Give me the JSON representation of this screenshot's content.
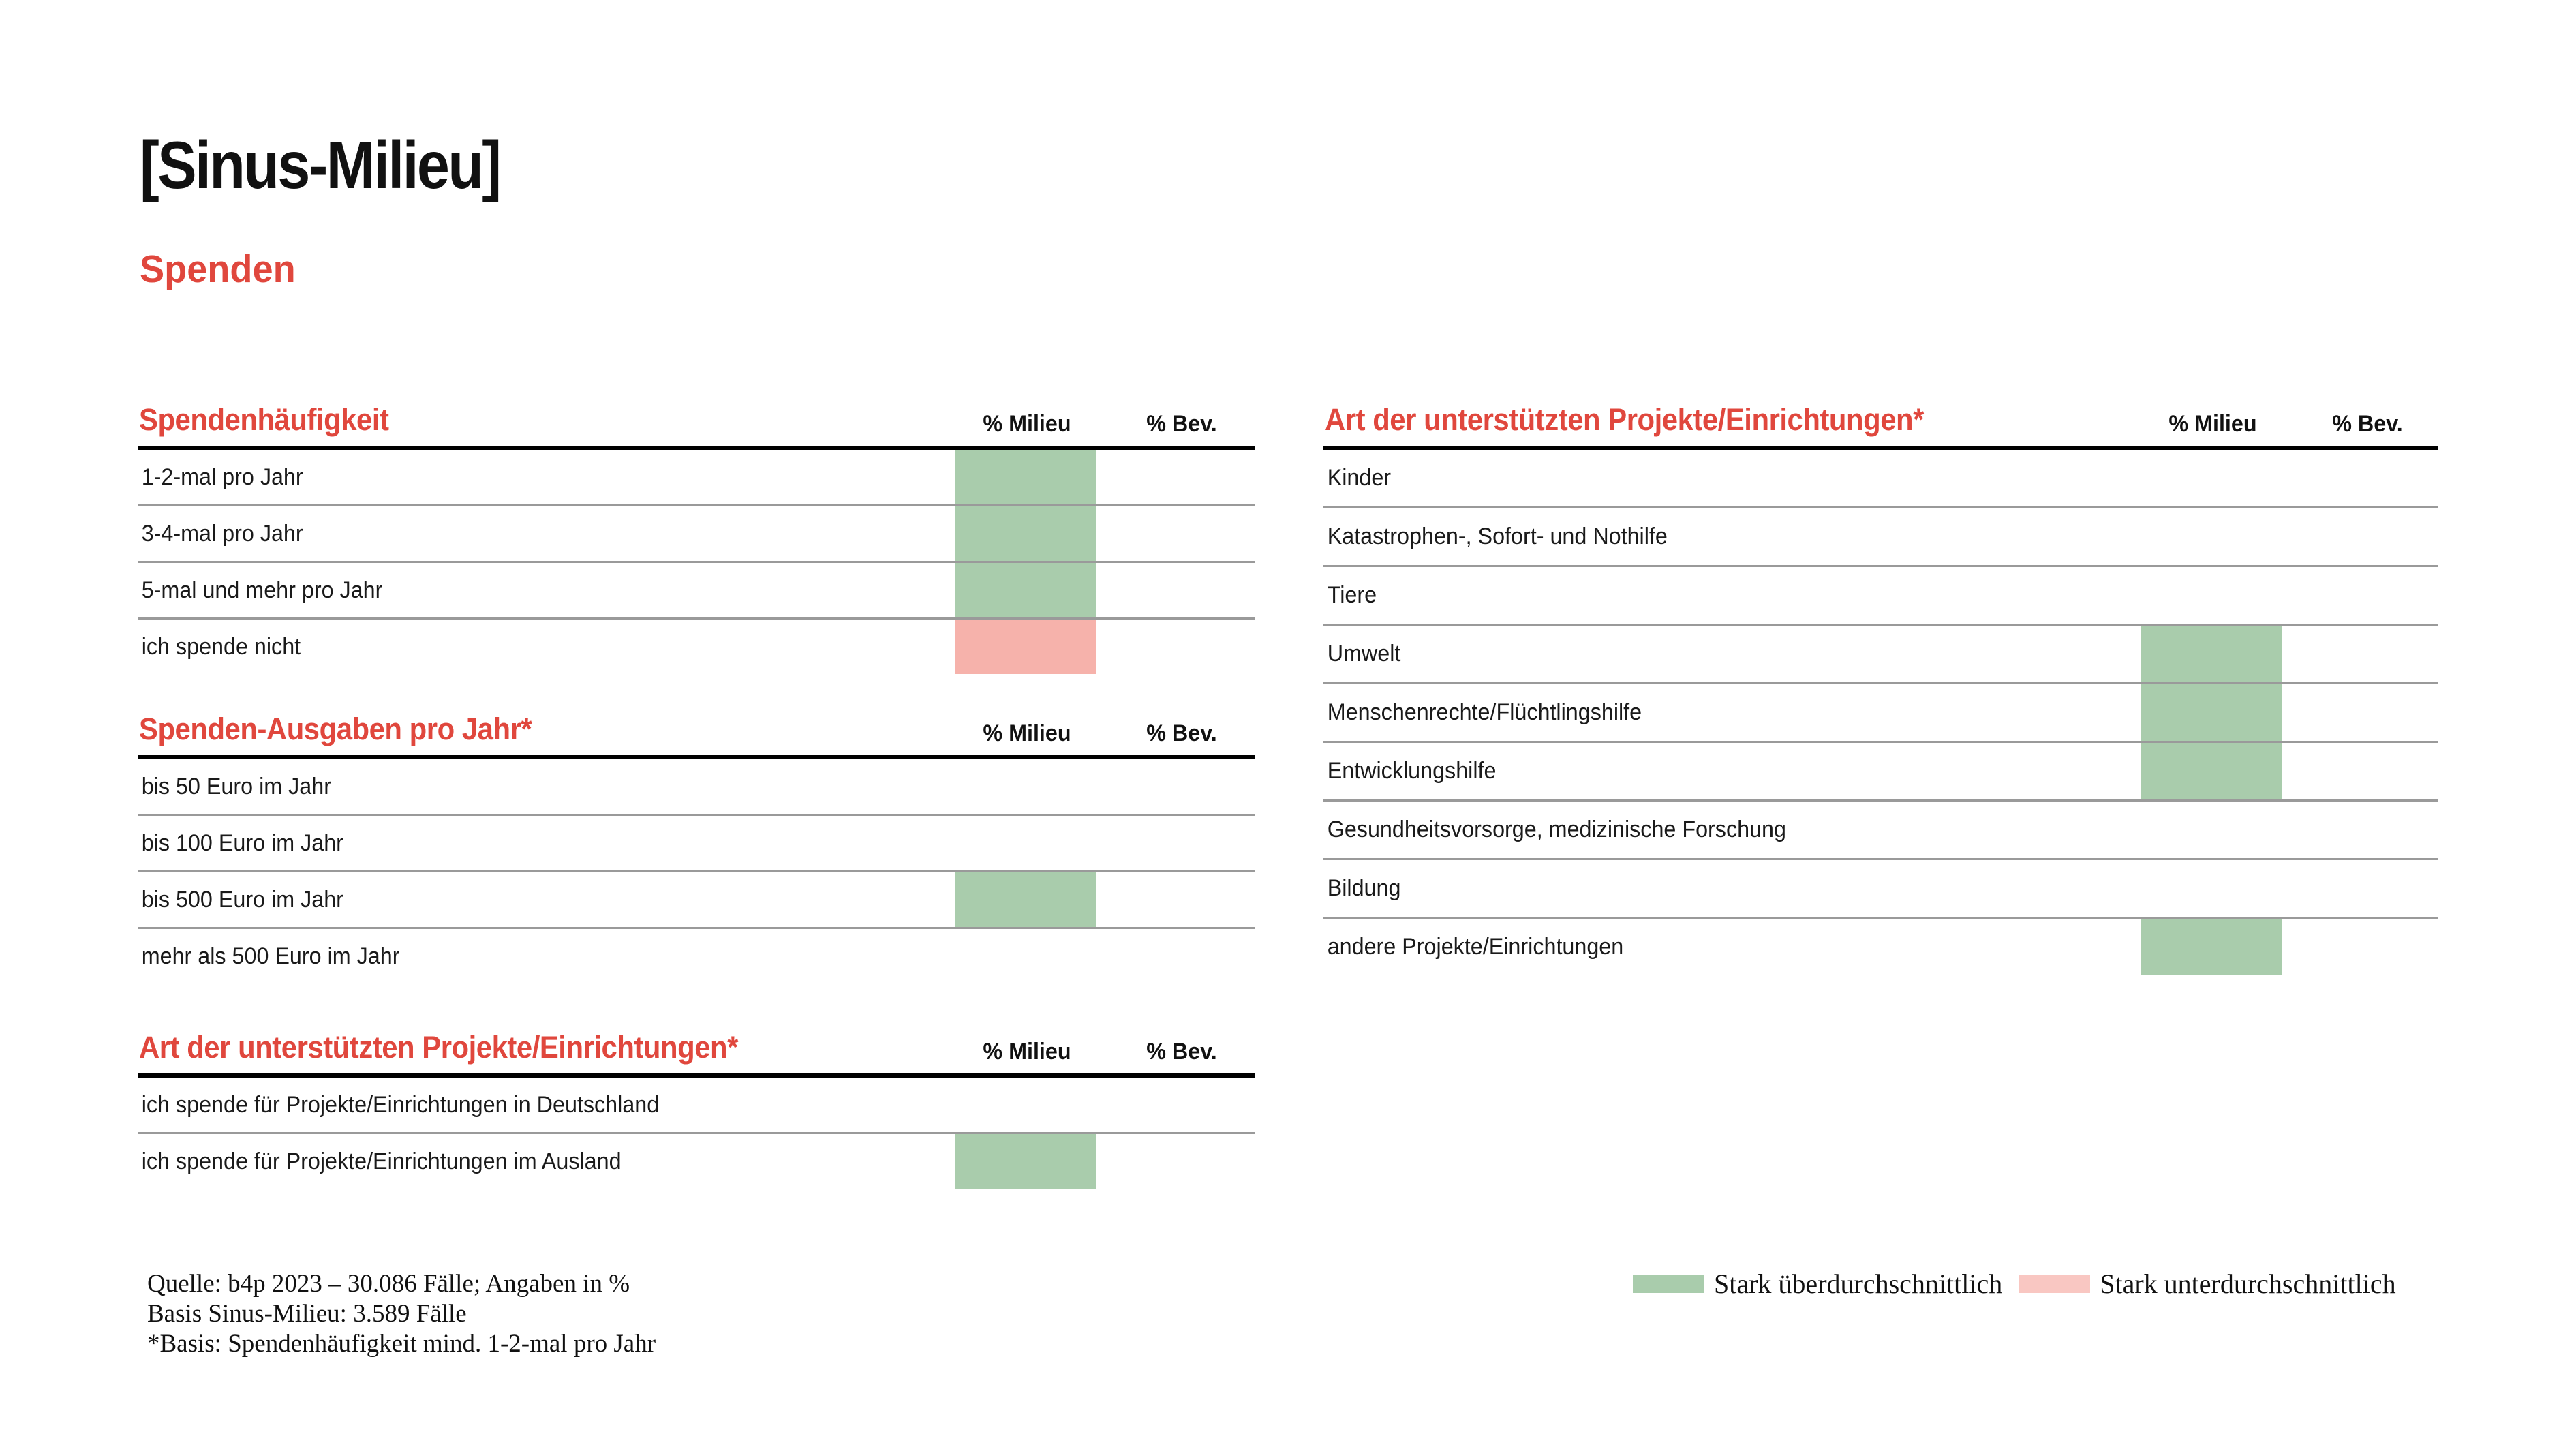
{
  "header": {
    "title": "[Sinus-Milieu]",
    "subtitle": "Spenden"
  },
  "columns": {
    "milieu": "% Milieu",
    "bev": "% Bev."
  },
  "tables": [
    {
      "heading": "Spendenhäufigkeit",
      "rows": [
        {
          "label": "1-2-mal pro Jahr",
          "highlight": "green"
        },
        {
          "label": "3-4-mal pro Jahr",
          "highlight": "green"
        },
        {
          "label": "5-mal und mehr pro Jahr",
          "highlight": "green"
        },
        {
          "label": "ich spende nicht",
          "highlight": "red"
        }
      ]
    },
    {
      "heading": "Spenden-Ausgaben pro Jahr*",
      "rows": [
        {
          "label": "bis 50 Euro im Jahr",
          "highlight": null
        },
        {
          "label": "bis 100 Euro im Jahr",
          "highlight": null
        },
        {
          "label": "bis 500 Euro im Jahr",
          "highlight": "green"
        },
        {
          "label": "mehr als 500 Euro im Jahr",
          "highlight": null
        }
      ]
    },
    {
      "heading": "Art der unterstützten Projekte/Einrichtungen*",
      "rows": [
        {
          "label": "ich spende für Projekte/Einrichtungen in Deutschland",
          "highlight": null
        },
        {
          "label": "ich spende für Projekte/Einrichtungen im Ausland",
          "highlight": "green"
        }
      ]
    },
    {
      "heading": "Art der unterstützten Projekte/Einrichtungen*",
      "rows": [
        {
          "label": "Kinder",
          "highlight": null
        },
        {
          "label": "Katastrophen-, Sofort- und Nothilfe",
          "highlight": null
        },
        {
          "label": "Tiere",
          "highlight": null
        },
        {
          "label": "Umwelt",
          "highlight": "green"
        },
        {
          "label": "Menschenrechte/Flüchtlingshilfe",
          "highlight": "green"
        },
        {
          "label": "Entwicklungshilfe",
          "highlight": "green"
        },
        {
          "label": "Gesundheitsvorsorge, medizinische Forschung",
          "highlight": null
        },
        {
          "label": "Bildung",
          "highlight": null
        },
        {
          "label": "andere Projekte/Einrichtungen",
          "highlight": "green"
        }
      ]
    }
  ],
  "footer": {
    "lines": [
      "Quelle: b4p 2023 – 30.086 Fälle; Angaben in %",
      "Basis Sinus-Milieu: 3.589 Fälle",
      "*Basis: Spendenhäufigkeit mind. 1-2-mal pro Jahr"
    ]
  },
  "legend": {
    "items": [
      {
        "label": "Stark überdurchschnittlich",
        "color": "green"
      },
      {
        "label": "Stark unterdurchschnittlich",
        "color": "red"
      }
    ]
  },
  "colors": {
    "green": "#a9ccac",
    "red": "#f6b2ab",
    "legend_red": "#f9c7c2",
    "heading_red": "#e0473d",
    "line_gray": "#9a9a9a",
    "line_black": "#000000"
  }
}
